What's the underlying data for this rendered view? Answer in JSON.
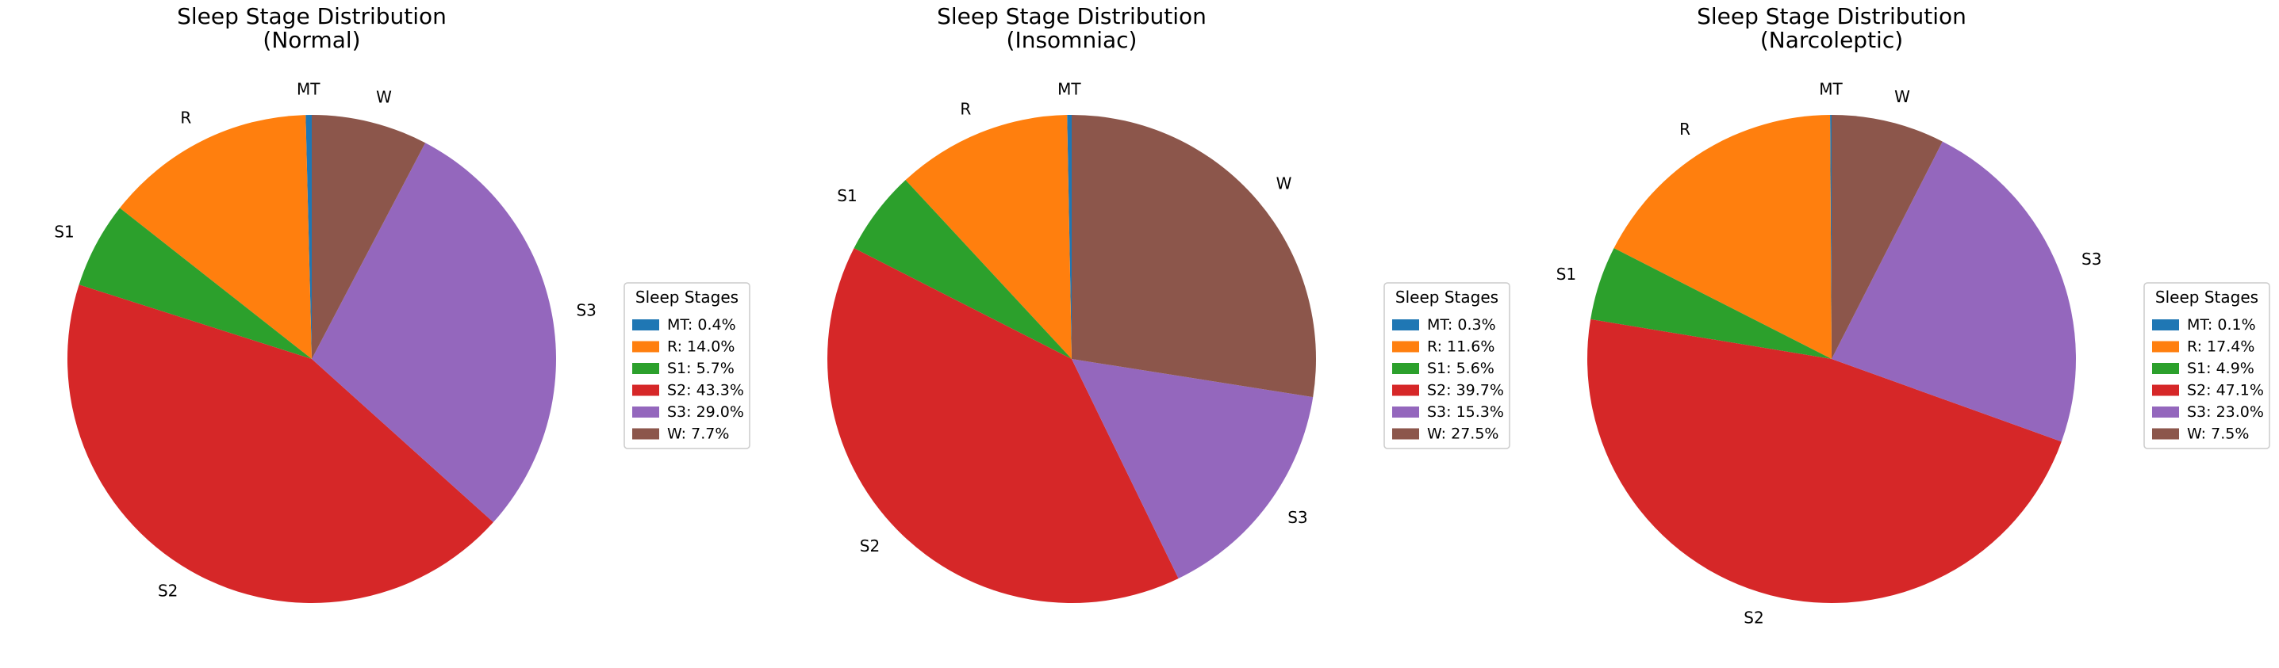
{
  "chart_data": [
    {
      "type": "pie",
      "title_line1": "Sleep Stage Distribution",
      "title_line2": "(Normal)",
      "legend_title": "Sleep Stages",
      "legend_placement": "right",
      "start_angle_deg": 90,
      "direction": "counterclockwise",
      "slices": [
        {
          "label": "MT",
          "value": 0.4,
          "legend": "MT: 0.4%",
          "color": "#1f77b4"
        },
        {
          "label": "R",
          "value": 14.0,
          "legend": "R: 14.0%",
          "color": "#ff7f0e"
        },
        {
          "label": "S1",
          "value": 5.7,
          "legend": "S1: 5.7%",
          "color": "#2ca02c"
        },
        {
          "label": "S2",
          "value": 43.3,
          "legend": "S2: 43.3%",
          "color": "#d62728"
        },
        {
          "label": "S3",
          "value": 29.0,
          "legend": "S3: 29.0%",
          "color": "#9467bd"
        },
        {
          "label": "W",
          "value": 7.7,
          "legend": "W: 7.7%",
          "color": "#8c564b"
        }
      ]
    },
    {
      "type": "pie",
      "title_line1": "Sleep Stage Distribution",
      "title_line2": "(Insomniac)",
      "legend_title": "Sleep Stages",
      "legend_placement": "right",
      "start_angle_deg": 90,
      "direction": "counterclockwise",
      "slices": [
        {
          "label": "MT",
          "value": 0.3,
          "legend": "MT: 0.3%",
          "color": "#1f77b4"
        },
        {
          "label": "R",
          "value": 11.6,
          "legend": "R: 11.6%",
          "color": "#ff7f0e"
        },
        {
          "label": "S1",
          "value": 5.6,
          "legend": "S1: 5.6%",
          "color": "#2ca02c"
        },
        {
          "label": "S2",
          "value": 39.7,
          "legend": "S2: 39.7%",
          "color": "#d62728"
        },
        {
          "label": "S3",
          "value": 15.3,
          "legend": "S3: 15.3%",
          "color": "#9467bd"
        },
        {
          "label": "W",
          "value": 27.5,
          "legend": "W: 27.5%",
          "color": "#8c564b"
        }
      ]
    },
    {
      "type": "pie",
      "title_line1": "Sleep Stage Distribution",
      "title_line2": "(Narcoleptic)",
      "legend_title": "Sleep Stages",
      "legend_placement": "right",
      "start_angle_deg": 90,
      "direction": "counterclockwise",
      "slices": [
        {
          "label": "MT",
          "value": 0.1,
          "legend": "MT: 0.1%",
          "color": "#1f77b4"
        },
        {
          "label": "R",
          "value": 17.4,
          "legend": "R: 17.4%",
          "color": "#ff7f0e"
        },
        {
          "label": "S1",
          "value": 4.9,
          "legend": "S1: 4.9%",
          "color": "#2ca02c"
        },
        {
          "label": "S2",
          "value": 47.1,
          "legend": "S2: 47.1%",
          "color": "#d62728"
        },
        {
          "label": "S3",
          "value": 23.0,
          "legend": "S3: 23.0%",
          "color": "#9467bd"
        },
        {
          "label": "W",
          "value": 7.5,
          "legend": "W: 7.5%",
          "color": "#8c564b"
        }
      ]
    }
  ]
}
